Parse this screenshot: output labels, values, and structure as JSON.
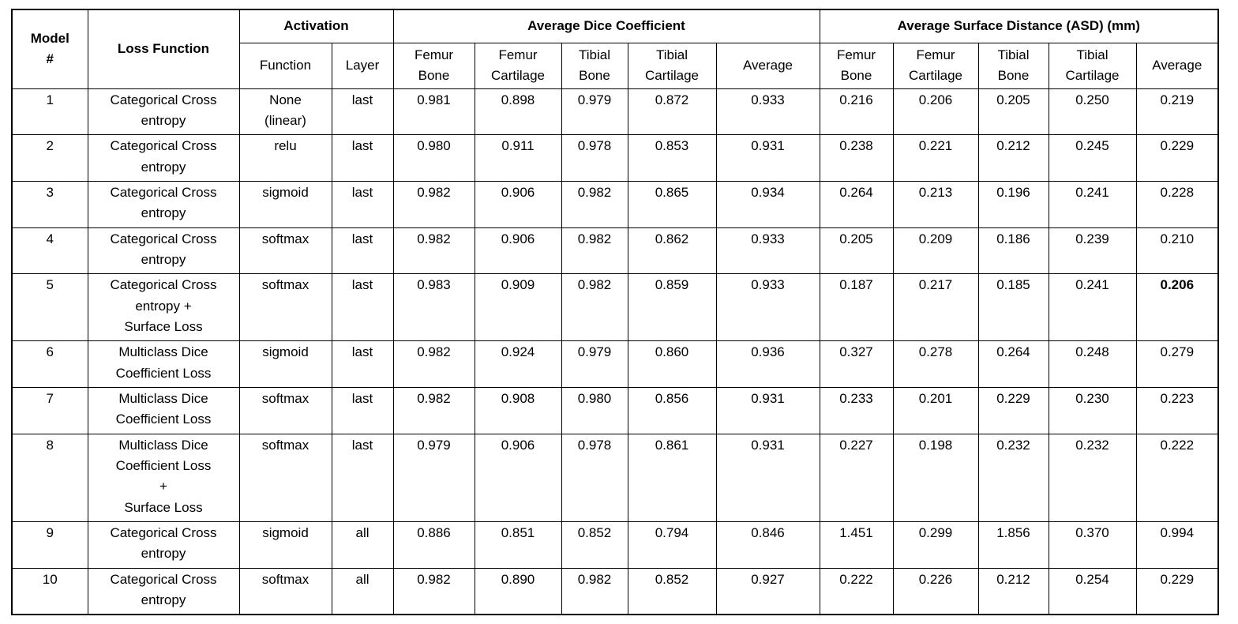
{
  "page": {
    "background_color": "#ffffff",
    "text_color": "#000000",
    "border_color": "#000000"
  },
  "table": {
    "header": {
      "model": "Model\n#",
      "loss_function": "Loss Function",
      "activation": "Activation",
      "activation_sub": [
        "Function",
        "Layer"
      ],
      "dice_group": "Average Dice Coefficient",
      "asd_group": "Average Surface Distance (ASD) (mm)",
      "metric_columns": [
        "Femur\nBone",
        "Femur\nCartilage",
        "Tibial\nBone",
        "Tibial\nCartilage",
        "Average"
      ]
    },
    "rows": [
      {
        "model": "1",
        "loss": "Categorical Cross\nentropy",
        "function": "None\n(linear)",
        "layer": "last",
        "dice": [
          "0.981",
          "0.898",
          "0.979",
          "0.872",
          "0.933"
        ],
        "asd": [
          "0.216",
          "0.206",
          "0.205",
          "0.250",
          "0.219"
        ],
        "bold_asd_average": false
      },
      {
        "model": "2",
        "loss": "Categorical Cross\nentropy",
        "function": "relu",
        "layer": "last",
        "dice": [
          "0.980",
          "0.911",
          "0.978",
          "0.853",
          "0.931"
        ],
        "asd": [
          "0.238",
          "0.221",
          "0.212",
          "0.245",
          "0.229"
        ],
        "bold_asd_average": false
      },
      {
        "model": "3",
        "loss": "Categorical Cross\nentropy",
        "function": "sigmoid",
        "layer": "last",
        "dice": [
          "0.982",
          "0.906",
          "0.982",
          "0.865",
          "0.934"
        ],
        "asd": [
          "0.264",
          "0.213",
          "0.196",
          "0.241",
          "0.228"
        ],
        "bold_asd_average": false
      },
      {
        "model": "4",
        "loss": "Categorical Cross\nentropy",
        "function": "softmax",
        "layer": "last",
        "dice": [
          "0.982",
          "0.906",
          "0.982",
          "0.862",
          "0.933"
        ],
        "asd": [
          "0.205",
          "0.209",
          "0.186",
          "0.239",
          "0.210"
        ],
        "bold_asd_average": false
      },
      {
        "model": "5",
        "loss": "Categorical Cross\nentropy +\nSurface Loss",
        "function": "softmax",
        "layer": "last",
        "dice": [
          "0.983",
          "0.909",
          "0.982",
          "0.859",
          "0.933"
        ],
        "asd": [
          "0.187",
          "0.217",
          "0.185",
          "0.241",
          "0.206"
        ],
        "bold_asd_average": true
      },
      {
        "model": "6",
        "loss": "Multiclass Dice\nCoefficient Loss",
        "function": "sigmoid",
        "layer": "last",
        "dice": [
          "0.982",
          "0.924",
          "0.979",
          "0.860",
          "0.936"
        ],
        "asd": [
          "0.327",
          "0.278",
          "0.264",
          "0.248",
          "0.279"
        ],
        "bold_asd_average": false
      },
      {
        "model": "7",
        "loss": "Multiclass Dice\nCoefficient Loss",
        "function": "softmax",
        "layer": "last",
        "dice": [
          "0.982",
          "0.908",
          "0.980",
          "0.856",
          "0.931"
        ],
        "asd": [
          "0.233",
          "0.201",
          "0.229",
          "0.230",
          "0.223"
        ],
        "bold_asd_average": false
      },
      {
        "model": "8",
        "loss": "Multiclass Dice\nCoefficient Loss\n+\nSurface Loss",
        "function": "softmax",
        "layer": "last",
        "dice": [
          "0.979",
          "0.906",
          "0.978",
          "0.861",
          "0.931"
        ],
        "asd": [
          "0.227",
          "0.198",
          "0.232",
          "0.232",
          "0.222"
        ],
        "bold_asd_average": false
      },
      {
        "model": "9",
        "loss": "Categorical Cross\nentropy",
        "function": "sigmoid",
        "layer": "all",
        "dice": [
          "0.886",
          "0.851",
          "0.852",
          "0.794",
          "0.846"
        ],
        "asd": [
          "1.451",
          "0.299",
          "1.856",
          "0.370",
          "0.994"
        ],
        "bold_asd_average": false
      },
      {
        "model": "10",
        "loss": "Categorical Cross\nentropy",
        "function": "softmax",
        "layer": "all",
        "dice": [
          "0.982",
          "0.890",
          "0.982",
          "0.852",
          "0.927"
        ],
        "asd": [
          "0.222",
          "0.226",
          "0.212",
          "0.254",
          "0.229"
        ],
        "bold_asd_average": false
      }
    ]
  }
}
